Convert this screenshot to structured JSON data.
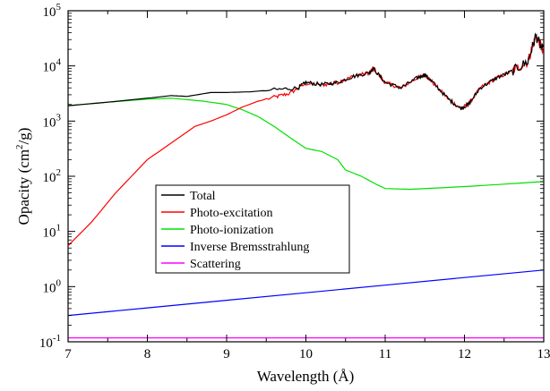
{
  "chart_data": {
    "type": "line",
    "xlabel": "Wavelength (Å)",
    "ylabel": "Opacity (cm2/g)",
    "ylabel_parts": {
      "base": "Opacity (cm",
      "sup": "2",
      "tail": "/g)"
    },
    "xlim": [
      7,
      13
    ],
    "ylim": [
      0.1,
      100000
    ],
    "yscale": "log",
    "x_ticks": [
      "7",
      "8",
      "9",
      "10",
      "11",
      "12",
      "13"
    ],
    "y_ticks": [
      {
        "base": "10",
        "exp": "-1",
        "value": 0.1
      },
      {
        "base": "10",
        "exp": "0",
        "value": 1
      },
      {
        "base": "10",
        "exp": "1",
        "value": 10
      },
      {
        "base": "10",
        "exp": "2",
        "value": 100
      },
      {
        "base": "10",
        "exp": "3",
        "value": 1000
      },
      {
        "base": "10",
        "exp": "4",
        "value": 10000
      },
      {
        "base": "10",
        "exp": "5",
        "value": 100000
      }
    ],
    "grid": false,
    "legend_position": "lower-left",
    "series": [
      {
        "name": "Total",
        "color": "#000000",
        "x": [
          7.0,
          7.5,
          8.0,
          8.3,
          8.5,
          8.8,
          9.0,
          9.3,
          9.6,
          9.9,
          10.0,
          10.2,
          10.4,
          10.6,
          10.8,
          10.85,
          11.0,
          11.2,
          11.4,
          11.5,
          11.6,
          11.8,
          11.95,
          12.05,
          12.2,
          12.4,
          12.6,
          12.8,
          12.9,
          13.0
        ],
        "y": [
          1900,
          2200,
          2600,
          2900,
          2800,
          3300,
          3300,
          3400,
          3700,
          4000,
          5000,
          4600,
          5000,
          6500,
          7500,
          9000,
          5000,
          4000,
          6000,
          7000,
          5000,
          2500,
          1700,
          2000,
          4000,
          6000,
          8000,
          12000,
          35000,
          18000
        ]
      },
      {
        "name": "Photo-excitation",
        "color": "#ff0000",
        "x": [
          7.0,
          7.3,
          7.6,
          8.0,
          8.3,
          8.6,
          8.8,
          9.0,
          9.2,
          9.4,
          9.6,
          9.8,
          10.0,
          10.2,
          10.4,
          10.6,
          10.8,
          10.85,
          11.0,
          11.2,
          11.4,
          11.5,
          11.6,
          11.8,
          11.95,
          12.05,
          12.2,
          12.4,
          12.6,
          12.8,
          12.9,
          13.0
        ],
        "y": [
          5.5,
          15,
          50,
          200,
          400,
          800,
          1000,
          1300,
          1800,
          2300,
          2700,
          3200,
          4800,
          4500,
          5000,
          6500,
          7500,
          9000,
          5000,
          4000,
          6000,
          7000,
          5000,
          2500,
          1700,
          2000,
          4000,
          6000,
          8000,
          12000,
          35000,
          18000
        ]
      },
      {
        "name": "Photo-ionization",
        "color": "#00e000",
        "x": [
          7.0,
          7.5,
          8.0,
          8.3,
          8.7,
          9.0,
          9.2,
          9.4,
          9.6,
          9.8,
          10.0,
          10.2,
          10.4,
          10.5,
          10.7,
          10.9,
          11.0,
          11.3,
          12.0,
          12.5,
          13.0
        ],
        "y": [
          1900,
          2200,
          2500,
          2600,
          2300,
          2000,
          1600,
          1200,
          800,
          500,
          320,
          280,
          200,
          130,
          100,
          70,
          60,
          58,
          65,
          72,
          80
        ]
      },
      {
        "name": "Inverse Bremsstrahlung",
        "color": "#0000ff",
        "x": [
          7,
          13
        ],
        "y": [
          0.3,
          2.0
        ]
      },
      {
        "name": "Scattering",
        "color": "#ff00ff",
        "x": [
          7,
          13
        ],
        "y": [
          0.118,
          0.118
        ]
      }
    ]
  }
}
